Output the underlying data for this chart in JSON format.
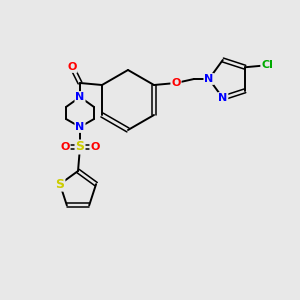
{
  "bg_color": "#e8e8e8",
  "bond_color": "#000000",
  "atom_colors": {
    "O": "#ff0000",
    "N": "#0000ff",
    "S": "#cccc00",
    "Cl": "#00aa00",
    "C": "#000000"
  },
  "figsize": [
    3.0,
    3.0
  ],
  "dpi": 100
}
